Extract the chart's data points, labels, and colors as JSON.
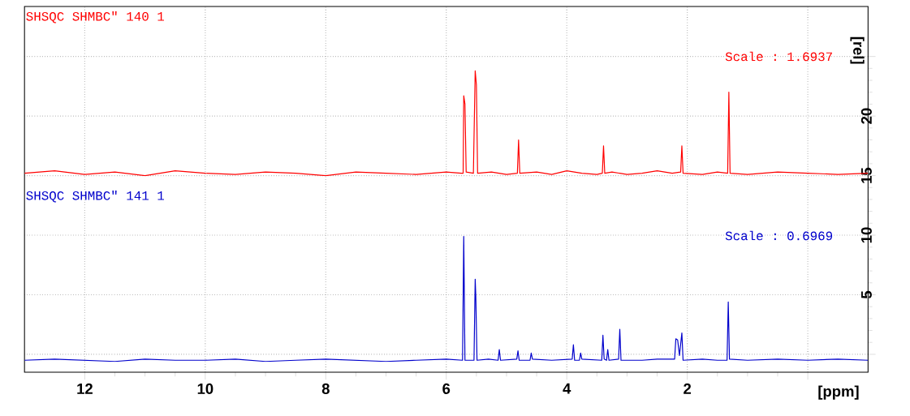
{
  "chart_data": {
    "type": "line",
    "xlabel": "[ppm]",
    "ylabel": "[rel]",
    "xlim": [
      13,
      -1
    ],
    "ylim": [
      -1.5,
      29.2
    ],
    "xticks": [
      12,
      10,
      8,
      6,
      4,
      2,
      {
        "value": 0,
        "label": null
      }
    ],
    "yticks": [
      {
        "value": 0,
        "label": null
      },
      5,
      10,
      15,
      20,
      {
        "value": 25,
        "label": null
      }
    ],
    "grid": true,
    "annotations": [
      "SHSQC SHMBC\"  140  1",
      "Scale : 1.6937",
      "SHSQC SHMBC\"  141  1",
      "Scale : 0.6969"
    ],
    "series": [
      {
        "color": "#ff0000",
        "x": [
          13,
          12.5,
          12,
          11.5,
          11,
          10.5,
          10,
          9.5,
          9,
          8.5,
          8,
          7.5,
          7,
          6.5,
          6,
          5.75,
          5.72,
          5.71,
          5.69,
          5.67,
          5.55,
          5.52,
          5.5,
          5.48,
          5.25,
          5,
          4.82,
          4.8,
          4.78,
          4.5,
          4.25,
          4,
          3.75,
          3.5,
          3.41,
          3.39,
          3.37,
          3.25,
          3,
          2.75,
          2.5,
          2.25,
          2.11,
          2.09,
          2.07,
          1.75,
          1.5,
          1.33,
          1.31,
          1.29,
          1,
          0.5,
          0,
          -0.5,
          -1
        ],
        "values": [
          15.2,
          15.4,
          15.1,
          15.3,
          15.0,
          15.4,
          15.2,
          15.1,
          15.3,
          15.2,
          15.0,
          15.3,
          15.2,
          15.1,
          15.3,
          15.2,
          15.2,
          21.7,
          21.0,
          15.3,
          15.2,
          23.8,
          22.6,
          15.2,
          15.3,
          15.1,
          15.2,
          18.0,
          15.2,
          15.3,
          15.1,
          15.4,
          15.2,
          15.1,
          15.2,
          17.5,
          15.2,
          15.3,
          15.1,
          15.2,
          15.4,
          15.2,
          15.3,
          17.5,
          15.2,
          15.1,
          15.3,
          15.2,
          22.0,
          15.2,
          15.1,
          15.3,
          15.2,
          15.1,
          15.2
        ]
      },
      {
        "color": "#0000cc",
        "x": [
          13,
          12.5,
          12,
          11.5,
          11,
          10.5,
          10,
          9.5,
          9,
          8.5,
          8,
          7.5,
          7,
          6.5,
          6,
          5.73,
          5.71,
          5.69,
          5.54,
          5.52,
          5.51,
          5.49,
          5.3,
          5.14,
          5.12,
          5.1,
          4.83,
          4.81,
          4.79,
          4.61,
          4.59,
          4.57,
          4.25,
          3.91,
          3.89,
          3.87,
          3.79,
          3.77,
          3.75,
          3.42,
          3.4,
          3.38,
          3.34,
          3.32,
          3.3,
          3.14,
          3.12,
          3.1,
          2.75,
          2.5,
          2.21,
          2.19,
          2.16,
          2.13,
          2.09,
          2.07,
          1.75,
          1.5,
          1.34,
          1.32,
          1.3,
          1,
          0.5,
          0,
          -0.5,
          -1
        ],
        "values": [
          -0.5,
          -0.4,
          -0.5,
          -0.6,
          -0.4,
          -0.5,
          -0.5,
          -0.4,
          -0.6,
          -0.5,
          -0.4,
          -0.5,
          -0.6,
          -0.5,
          -0.4,
          -0.5,
          9.9,
          -0.5,
          -0.5,
          6.3,
          4.9,
          -0.5,
          -0.4,
          -0.5,
          0.4,
          -0.5,
          -0.4,
          0.3,
          -0.5,
          -0.5,
          0.1,
          -0.4,
          -0.5,
          -0.4,
          0.8,
          -0.5,
          -0.5,
          0.1,
          -0.4,
          -0.5,
          1.6,
          -0.4,
          -0.5,
          0.4,
          -0.5,
          -0.4,
          2.1,
          -0.5,
          -0.5,
          -0.4,
          -0.4,
          1.3,
          1.2,
          -0.1,
          1.8,
          -0.5,
          -0.4,
          -0.5,
          -0.5,
          4.4,
          -0.4,
          -0.5,
          -0.4,
          -0.5,
          -0.4,
          -0.5
        ]
      }
    ]
  }
}
